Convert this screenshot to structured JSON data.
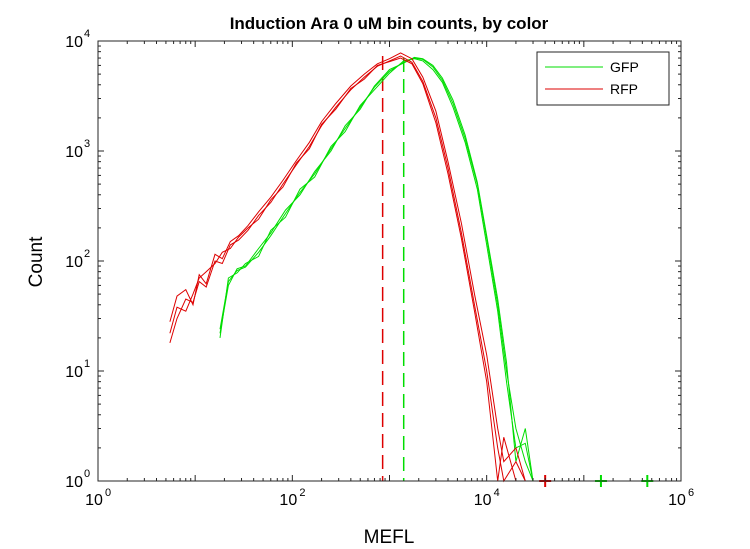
{
  "chart_data": {
    "type": "line",
    "title": "Induction Ara    0 uM bin counts, by color",
    "xlabel": "MEFL",
    "ylabel": "Count",
    "xscale": "log",
    "yscale": "log",
    "xlim": [
      1,
      1000000
    ],
    "ylim": [
      1,
      10000
    ],
    "grid": false,
    "legend_position": "top-right",
    "xticks": [
      {
        "value": 1,
        "base": "10",
        "exp": "0"
      },
      {
        "value": 100,
        "base": "10",
        "exp": "2"
      },
      {
        "value": 10000,
        "base": "10",
        "exp": "4"
      },
      {
        "value": 1000000,
        "base": "10",
        "exp": "6"
      }
    ],
    "yticks": [
      {
        "value": 1,
        "base": "10",
        "exp": "0"
      },
      {
        "value": 10,
        "base": "10",
        "exp": "1"
      },
      {
        "value": 100,
        "base": "10",
        "exp": "2"
      },
      {
        "value": 1000,
        "base": "10",
        "exp": "3"
      },
      {
        "value": 10000,
        "base": "10",
        "exp": "4"
      }
    ],
    "series": [
      {
        "name": "GFP",
        "color": "#00dd00",
        "replicates": [
          {
            "x": [
              18,
              22,
              27,
              33,
              45,
              60,
              85,
              120,
              170,
              250,
              350,
              500,
              700,
              1000,
              1400,
              1800,
              2200,
              2800,
              3500,
              4500,
              6000,
              8000,
              10000,
              13000,
              16000,
              20000,
              25000,
              30000
            ],
            "y": [
              24,
              65,
              82,
              88,
              120,
              170,
              270,
              420,
              620,
              1050,
              1600,
              2500,
              3800,
              5300,
              6400,
              7000,
              6800,
              5800,
              4400,
              2700,
              1300,
              500,
              160,
              40,
              10,
              3,
              1.5,
              1
            ]
          },
          {
            "x": [
              18,
              22,
              27,
              33,
              45,
              60,
              85,
              120,
              170,
              250,
              350,
              500,
              700,
              1000,
              1400,
              1800,
              2200,
              2800,
              3500,
              4500,
              6000,
              8000,
              10000,
              13000,
              16000,
              20000,
              25000,
              30000
            ],
            "y": [
              20,
              70,
              78,
              95,
              110,
              190,
              250,
              450,
              580,
              1100,
              1500,
              2600,
              3600,
              5100,
              6600,
              6900,
              6600,
              5500,
              4200,
              2500,
              1200,
              450,
              140,
              35,
              8,
              2,
              2.2,
              1
            ]
          },
          {
            "x": [
              18,
              22,
              27,
              33,
              45,
              60,
              85,
              120,
              170,
              250,
              350,
              500,
              700,
              1000,
              1400,
              1800,
              2200,
              2800,
              3500,
              4500,
              6000,
              8000,
              10000,
              13000,
              16000,
              20000,
              25000,
              30000
            ],
            "y": [
              22,
              60,
              85,
              90,
              130,
              180,
              290,
              400,
              650,
              1000,
              1700,
              2400,
              3900,
              5500,
              6300,
              7100,
              6900,
              6000,
              4600,
              2900,
              1400,
              520,
              170,
              45,
              12,
              1.5,
              3,
              1
            ]
          }
        ],
        "median": 1400,
        "marker_x": [
          150000,
          450000
        ]
      },
      {
        "name": "RFP",
        "color": "#dd0000",
        "replicates": [
          {
            "x": [
              5.5,
              6.5,
              8,
              9.5,
              11,
              13,
              16,
              19,
              23,
              28,
              35,
              45,
              60,
              80,
              110,
              150,
              200,
              280,
              400,
              550,
              750,
              1000,
              1300,
              1700,
              2200,
              3000,
              4000,
              5500,
              7500,
              10000,
              13000,
              15000,
              20000,
              25000
            ],
            "y": [
              18,
              30,
              45,
              42,
              65,
              58,
              100,
              95,
              140,
              155,
              190,
              260,
              340,
              500,
              750,
              1100,
              1700,
              2500,
              3600,
              4700,
              5900,
              6600,
              7300,
              6400,
              4300,
              2000,
              700,
              180,
              40,
              10,
              2,
              1,
              1.5,
              1
            ]
          },
          {
            "x": [
              5.5,
              6.5,
              8,
              9.5,
              11,
              13,
              16,
              19,
              23,
              28,
              35,
              45,
              60,
              80,
              110,
              150,
              200,
              280,
              400,
              550,
              750,
              1000,
              1300,
              1700,
              2200,
              3000,
              4000,
              5500,
              7500,
              10000,
              13000,
              15000,
              20000,
              25000
            ],
            "y": [
              28,
              48,
              55,
              40,
              75,
              62,
              115,
              105,
              150,
              170,
              210,
              280,
              380,
              540,
              820,
              1200,
              1850,
              2700,
              3900,
              5000,
              6200,
              6900,
              7800,
              6900,
              4700,
              2300,
              800,
              220,
              50,
              14,
              3,
              1.5,
              2,
              1
            ]
          },
          {
            "x": [
              5.5,
              6.5,
              8,
              9.5,
              11,
              13,
              16,
              19,
              23,
              28,
              35,
              45,
              60,
              80,
              110,
              150,
              200,
              280,
              400,
              550,
              750,
              1000,
              1300,
              1700,
              2200,
              3000,
              4000,
              5500,
              7500,
              10000,
              13000,
              15000,
              20000,
              25000
            ],
            "y": [
              22,
              38,
              35,
              50,
              70,
              80,
              95,
              120,
              130,
              165,
              200,
              240,
              360,
              470,
              780,
              1050,
              1750,
              2400,
              3700,
              4500,
              6000,
              6500,
              7000,
              6200,
              4100,
              1800,
              620,
              160,
              35,
              8,
              1,
              2.5,
              1,
              1
            ]
          }
        ],
        "median": 850,
        "marker_x": [
          40000
        ]
      }
    ]
  }
}
